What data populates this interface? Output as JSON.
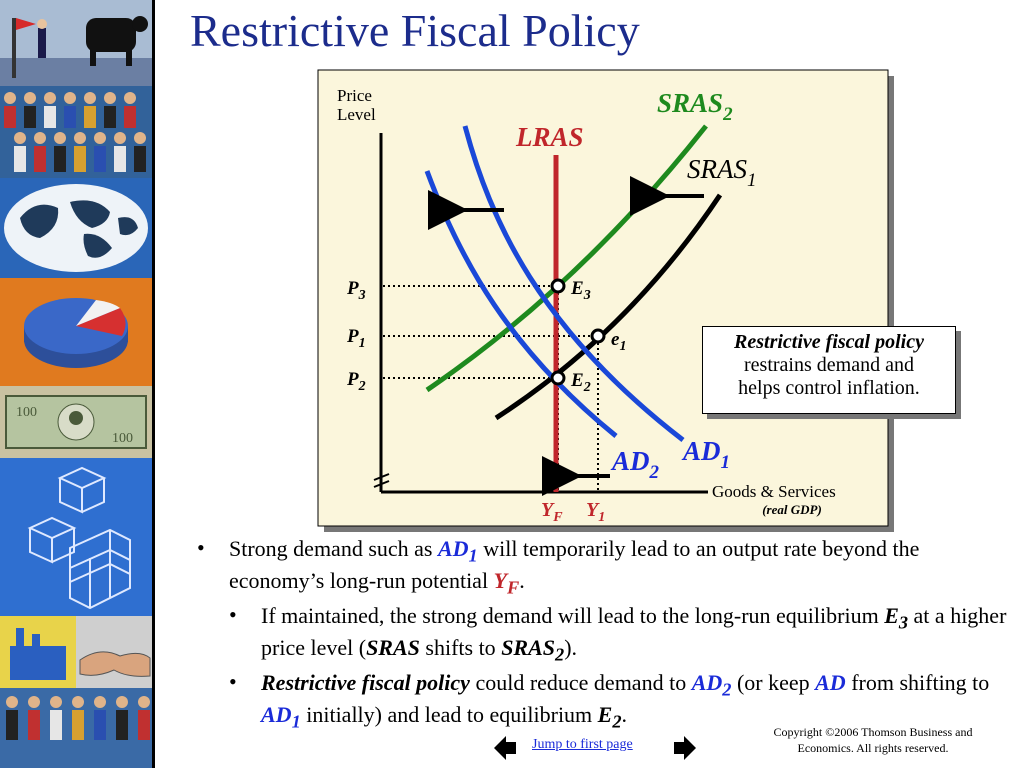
{
  "title": "Restrictive Fiscal Policy",
  "diagram": {
    "y_axis_label_line1": "Price",
    "y_axis_label_line2": "Level",
    "x_axis_label": "Goods & Services",
    "x_axis_sublabel": "(real GDP)",
    "curves": {
      "lras": "LRAS",
      "sras_base": "SRAS",
      "sras1_sub": "1",
      "sras2_sub": "2",
      "ad_base": "AD",
      "ad1_sub": "1",
      "ad2_sub": "2"
    },
    "price_levels": {
      "p_base": "P",
      "p3_sub": "3",
      "p1_sub": "1",
      "p2_sub": "2"
    },
    "points": {
      "e3_base": "E",
      "e3_sub": "3",
      "e1_base": "e",
      "e1_sub": "1",
      "e2_base": "E",
      "e2_sub": "2"
    },
    "output_levels": {
      "y_base": "Y",
      "yf_sub": "F",
      "y1_sub": "1"
    },
    "callout": {
      "heading": "Restrictive fiscal policy",
      "line2": "restrains demand and",
      "line3": "helps control inflation."
    }
  },
  "bullets": {
    "b1": {
      "t1": "Strong demand such as ",
      "ad": "AD",
      "ad_sub": "1",
      "t2": " will temporarily lead to an output rate beyond the economy’s long-run potential ",
      "y": "Y",
      "y_sub": "F",
      "t3": "."
    },
    "b2": {
      "t1": "If maintained, the strong demand will lead to the long-run equilibrium ",
      "e": "E",
      "e_sub": "3",
      "t2": " at a higher price level (",
      "sras": "SRAS",
      "t3": " shifts to ",
      "sras2": "SRAS",
      "sras2_sub": "2",
      "t4": ")."
    },
    "b3": {
      "lead": "Restrictive fiscal policy",
      "t1": " could reduce demand to ",
      "ad2": "AD",
      "ad2_sub": "2",
      "t2": " (or keep ",
      "ad": "AD",
      "t3": " from shifting to ",
      "ad1": "AD",
      "ad1_sub": "1",
      "t4": " initially) and lead to equilibrium ",
      "e": "E",
      "e_sub": "2",
      "t5": "."
    },
    "bullet_char": "•"
  },
  "footer": {
    "link": "Jump to first page",
    "copyright_line1": "Copyright ©2006  Thomson Business and",
    "copyright_line2": "Economics. All rights reserved."
  },
  "colors": {
    "title": "#1c2c8c",
    "lras": "#c0262b",
    "sras2": "#1e8a1e",
    "ad": "#1a2bd8",
    "panel": "#fbf6dc"
  }
}
